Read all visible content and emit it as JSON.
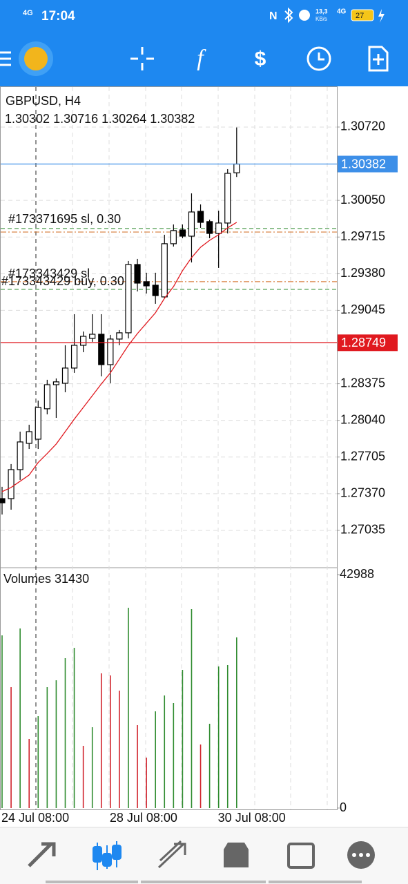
{
  "status_bar": {
    "network": "4G",
    "time": "17:04",
    "speed_value": "13,3",
    "speed_unit": "KB/s",
    "network2": "4G",
    "battery": "27"
  },
  "chart_data": {
    "type": "candlestick",
    "symbol": "GBPUSD, H4",
    "ohlc_text": "1.30302 1.30716 1.30264 1.30382",
    "categories": [
      "24 Jul 08:00",
      null,
      null,
      null,
      null,
      null,
      null,
      null,
      null,
      null,
      null,
      null,
      "28 Jul 08:00",
      null,
      null,
      null,
      null,
      null,
      null,
      null,
      null,
      null,
      null,
      null,
      "30 Jul 08:00",
      null,
      null
    ],
    "open": [
      1.27325,
      1.27325,
      1.2759,
      1.2783,
      1.27868,
      1.28146,
      1.28366,
      1.28379,
      1.28518,
      1.28726,
      1.28789,
      1.28827,
      1.28549,
      1.28783,
      1.2884,
      1.29464,
      1.29307,
      1.29275,
      1.29168,
      1.29654,
      1.2978,
      1.29723,
      1.2995,
      1.29856,
      1.29748,
      1.29843,
      1.30302
    ],
    "high": [
      1.27433,
      1.27641,
      1.27937,
      1.28,
      1.28221,
      1.28411,
      1.28423,
      1.28726,
      1.2901,
      1.28852,
      1.2901,
      1.2901,
      1.28821,
      1.28865,
      1.29496,
      1.29515,
      1.29389,
      1.29389,
      1.29736,
      1.2983,
      1.2983,
      1.30114,
      1.30013,
      1.29874,
      1.29956,
      1.30335,
      1.30716
    ],
    "low": [
      1.2718,
      1.27224,
      1.27496,
      1.27779,
      1.27779,
      1.28095,
      1.28063,
      1.28297,
      1.28474,
      1.28663,
      1.28758,
      1.28442,
      1.28379,
      1.28726,
      1.28789,
      1.29218,
      1.29199,
      1.29105,
      1.29155,
      1.29628,
      1.29704,
      1.29483,
      1.29799,
      1.29704,
      1.29433,
      1.29748,
      1.30264
    ],
    "close": [
      1.27287,
      1.2759,
      1.27843,
      1.27937,
      1.28158,
      1.28366,
      1.28392,
      1.28518,
      1.28726,
      1.28808,
      1.28827,
      1.28549,
      1.28783,
      1.2884,
      1.29464,
      1.29294,
      1.29269,
      1.2918,
      1.29654,
      1.29774,
      1.29723,
      1.29944,
      1.29849,
      1.29748,
      1.29843,
      1.30297,
      1.30382
    ],
    "ma": {
      "color": "#e0191f",
      "values": [
        1.27389,
        1.27427,
        1.27484,
        1.27541,
        1.27655,
        1.27737,
        1.27824,
        1.27937,
        1.28051,
        1.28158,
        1.28265,
        1.28373,
        1.28474,
        1.286,
        1.28726,
        1.28833,
        1.28928,
        1.29023,
        1.29155,
        1.29262,
        1.29408,
        1.29527,
        1.29622,
        1.29685,
        1.29736,
        1.29799,
        1.29849
      ]
    },
    "up_color": "#ffffff",
    "down_color": "#000000",
    "ylim": [
      1.26694,
      1.31092
    ],
    "yticks": [
      {
        "value": 1.3072,
        "label": "1.30720"
      },
      {
        "value": 1.3005,
        "label": "1.30050"
      },
      {
        "value": 1.29715,
        "label": "1.29715"
      },
      {
        "value": 1.2938,
        "label": "1.29380"
      },
      {
        "value": 1.29045,
        "label": "1.29045"
      },
      {
        "value": 1.28375,
        "label": "1.28375"
      },
      {
        "value": 1.2804,
        "label": "1.28040"
      },
      {
        "value": 1.27705,
        "label": "1.27705"
      },
      {
        "value": 1.2737,
        "label": "1.27370"
      },
      {
        "value": 1.27035,
        "label": "1.27035"
      }
    ],
    "grid": true,
    "price_lines": [
      {
        "value": 1.30382,
        "color": "#3d8fe8"
      },
      {
        "value": 1.28749,
        "color": "#e0191f"
      }
    ],
    "order_lines": [
      {
        "value": 1.29793,
        "color": "#2e8b2e"
      },
      {
        "value": 1.29761,
        "color": "#d2691e"
      },
      {
        "value": 1.29307,
        "color": "#d2691e"
      },
      {
        "value": 1.29237,
        "color": "#2e8b2e"
      }
    ],
    "order_labels": [
      "#173371695 sl, 0.30",
      "#173343429 sl",
      "#173343429 buy, 0.30"
    ],
    "volume_label": "Volumes 31430",
    "volumes": [
      31800,
      22260,
      33070,
      12720,
      16920,
      22260,
      23530,
      27600,
      29510,
      11450,
      14880,
      24800,
      24420,
      21620,
      36890,
      15260,
      9290,
      17810,
      20730,
      19330,
      25440,
      36630,
      11700,
      15520,
      26070,
      26330,
      31430
    ],
    "volume_colors": [
      "#2e8b2e",
      "#d0212a",
      "#2e8b2e",
      "#d0212a",
      "#2e8b2e",
      "#2e8b2e",
      "#2e8b2e",
      "#2e8b2e",
      "#2e8b2e",
      "#d0212a",
      "#2e8b2e",
      "#d0212a",
      "#d0212a",
      "#d0212a",
      "#2e8b2e",
      "#d0212a",
      "#d0212a",
      "#2e8b2e",
      "#2e8b2e",
      "#2e8b2e",
      "#2e8b2e",
      "#2e8b2e",
      "#d0212a",
      "#2e8b2e",
      "#2e8b2e",
      "#2e8b2e",
      "#2e8b2e"
    ],
    "volume_ylim": [
      0,
      42988
    ],
    "volume_ticks": [
      0,
      42988
    ]
  }
}
